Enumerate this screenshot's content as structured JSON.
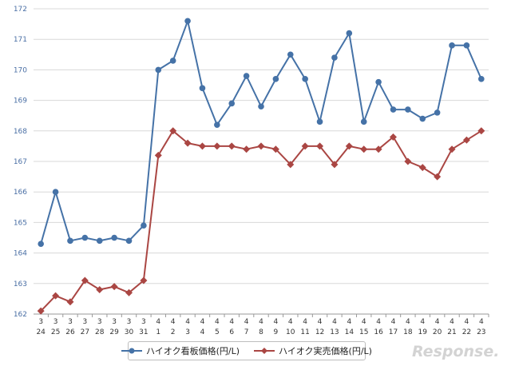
{
  "chart_data": {
    "type": "line",
    "title": "",
    "xlabel": "",
    "ylabel": "",
    "ylim": [
      162,
      172
    ],
    "yticks": [
      162,
      163,
      164,
      165,
      166,
      167,
      168,
      169,
      170,
      171,
      172
    ],
    "grid": true,
    "legend_position": "bottom-center",
    "x": [
      {
        "month": "3",
        "day": "24"
      },
      {
        "month": "3",
        "day": "25"
      },
      {
        "month": "3",
        "day": "26"
      },
      {
        "month": "3",
        "day": "27"
      },
      {
        "month": "3",
        "day": "28"
      },
      {
        "month": "3",
        "day": "29"
      },
      {
        "month": "3",
        "day": "30"
      },
      {
        "month": "3",
        "day": "31"
      },
      {
        "month": "4",
        "day": "1"
      },
      {
        "month": "4",
        "day": "2"
      },
      {
        "month": "4",
        "day": "3"
      },
      {
        "month": "4",
        "day": "4"
      },
      {
        "month": "4",
        "day": "5"
      },
      {
        "month": "4",
        "day": "6"
      },
      {
        "month": "4",
        "day": "7"
      },
      {
        "month": "4",
        "day": "8"
      },
      {
        "month": "4",
        "day": "9"
      },
      {
        "month": "4",
        "day": "10"
      },
      {
        "month": "4",
        "day": "11"
      },
      {
        "month": "4",
        "day": "12"
      },
      {
        "month": "4",
        "day": "13"
      },
      {
        "month": "4",
        "day": "14"
      },
      {
        "month": "4",
        "day": "15"
      },
      {
        "month": "4",
        "day": "16"
      },
      {
        "month": "4",
        "day": "17"
      },
      {
        "month": "4",
        "day": "18"
      },
      {
        "month": "4",
        "day": "19"
      },
      {
        "month": "4",
        "day": "20"
      },
      {
        "month": "4",
        "day": "21"
      },
      {
        "month": "4",
        "day": "22"
      },
      {
        "month": "4",
        "day": "23"
      }
    ],
    "series": [
      {
        "name": "ハイオク看板価格(円/L)",
        "color": "#4572a7",
        "marker": "circle",
        "values": [
          164.3,
          166.0,
          164.4,
          164.5,
          164.4,
          164.5,
          164.4,
          164.9,
          170.0,
          170.3,
          171.6,
          169.4,
          168.2,
          168.9,
          169.8,
          168.8,
          169.7,
          170.5,
          169.7,
          168.3,
          170.4,
          171.2,
          168.3,
          169.6,
          168.7,
          168.7,
          168.4,
          168.6,
          170.8,
          170.8,
          169.7
        ]
      },
      {
        "name": "ハイオク実売価格(円/L)",
        "color": "#aa4643",
        "marker": "diamond",
        "values": [
          162.1,
          162.6,
          162.4,
          163.1,
          162.8,
          162.9,
          162.7,
          163.1,
          167.2,
          168.0,
          167.6,
          167.5,
          167.5,
          167.5,
          167.4,
          167.5,
          167.4,
          166.9,
          167.5,
          167.5,
          166.9,
          167.5,
          167.4,
          167.4,
          167.8,
          167.0,
          166.8,
          166.5,
          167.4,
          167.7,
          168.0
        ]
      }
    ]
  },
  "watermark": {
    "text": "Response."
  }
}
